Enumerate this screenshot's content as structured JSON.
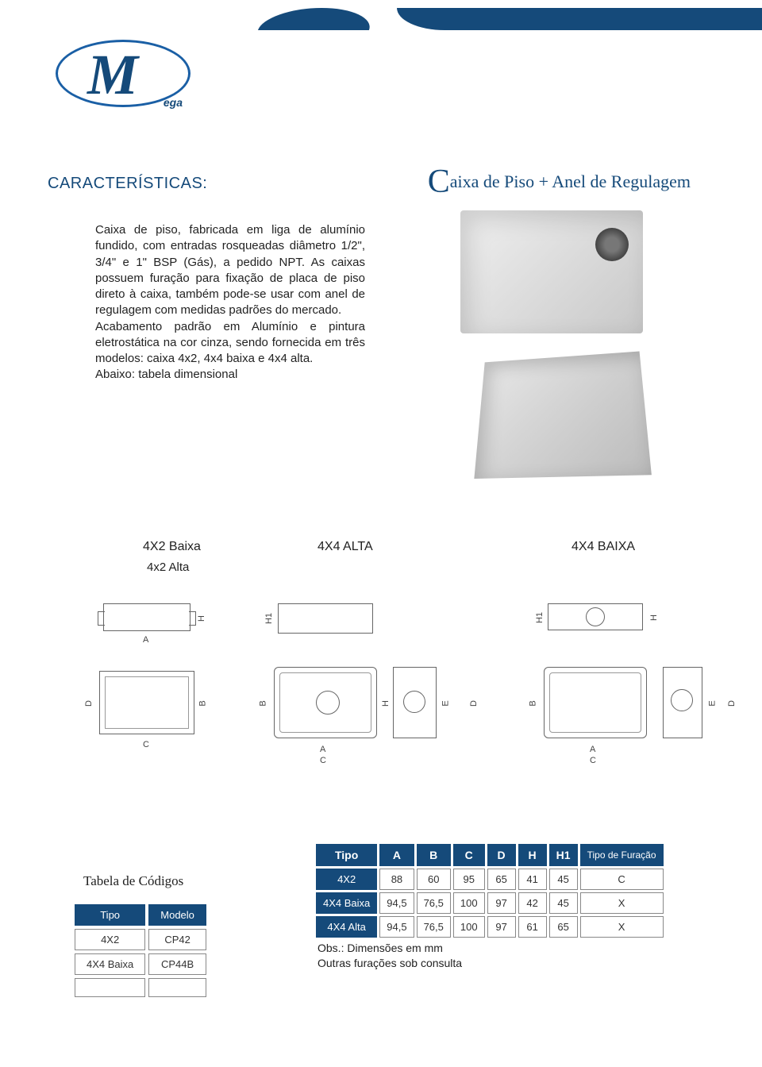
{
  "header": {
    "logo_letter": "M",
    "logo_suffix": "ega"
  },
  "section_title": "CARACTERÍSTICAS:",
  "page_title_rest": "aixa  de  Piso + Anel de Regulagem",
  "description": "Caixa de  piso, fabricada em  liga de alumínio fundido, com  entradas rosqueadas diâmetro 1/2\", 3/4\" e 1\" BSP (Gás), a pedido NPT. As caixas possuem furação para fixação de placa de piso direto à caixa, também pode-se usar com anel de regulagem com medidas padrões do mercado.\nAcabamento padrão  em Alumínio e pintura eletrostática na cor cinza, sendo fornecida em três modelos: caixa 4x2, 4x4 baixa e 4x4 alta.\nAbaixo: tabela dimensional",
  "drawing_labels": {
    "col1": "4X2 Baixa",
    "col1_sub": "4x2 Alta",
    "col2": "4X4 ALTA",
    "col3": "4X4 BAIXA"
  },
  "dim_letters": {
    "A": "A",
    "B": "B",
    "C": "C",
    "D": "D",
    "E": "E",
    "H": "H",
    "H1": "H1"
  },
  "codes": {
    "title": "Tabela de Códigos",
    "headers": [
      "Tipo",
      "Modelo"
    ],
    "rows": [
      [
        "4X2",
        "CP42"
      ],
      [
        "4X4 Baixa",
        "CP44B"
      ],
      [
        "",
        ""
      ]
    ]
  },
  "dimensions": {
    "headers": [
      "Tipo",
      "A",
      "B",
      "C",
      "D",
      "H",
      "H1",
      "Tipo de Furação"
    ],
    "rows": [
      [
        "4X2",
        "88",
        "60",
        "95",
        "65",
        "41",
        "45",
        "C"
      ],
      [
        "4X4 Baixa",
        "94,5",
        "76,5",
        "100",
        "97",
        "42",
        "45",
        "X"
      ],
      [
        "4X4 Alta",
        "94,5",
        "76,5",
        "100",
        "97",
        "61",
        "65",
        "X"
      ]
    ]
  },
  "obs": {
    "line1": "Obs.: Dimensões em mm",
    "line2": "Outras furações sob consulta"
  },
  "colors": {
    "brand": "#154a7a",
    "border": "#888888"
  }
}
